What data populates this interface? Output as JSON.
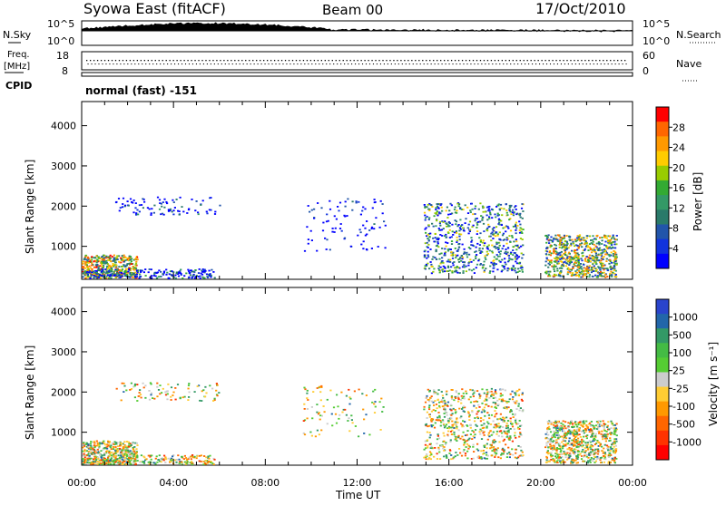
{
  "header": {
    "station": "Syowa East (fitACF)",
    "beam": "Beam 00",
    "date": "17/Oct/2010"
  },
  "noise_panel": {
    "left_label": "N.Sky",
    "right_label": "N.Search",
    "left_ticks": [
      "10^5",
      "10^0"
    ],
    "right_ticks": [
      "10^5",
      "10^0"
    ]
  },
  "freq_panel": {
    "left_label_1": "Freq.",
    "left_label_2": "[MHz]",
    "right_label": "Nave",
    "left_ticks": [
      "18",
      "8"
    ],
    "right_ticks": [
      "60",
      "0"
    ]
  },
  "cpid_panel": {
    "label": "CPID",
    "value": "normal (fast) -151"
  },
  "chart_data": [
    {
      "type": "heatmap",
      "name": "power",
      "ylabel": "Slant Range [km]",
      "ylim": [
        180,
        4600
      ],
      "yticks": [
        1000,
        2000,
        3000,
        4000
      ],
      "colorbar": {
        "label": "Power [dB]",
        "ticks": [
          "28",
          "24",
          "20",
          "16",
          "12",
          "8",
          "4"
        ],
        "colors": [
          "#ff0000",
          "#ff6600",
          "#ff9900",
          "#ffcc00",
          "#99cc00",
          "#33aa33",
          "#339966",
          "#2a7a6a",
          "#2255aa",
          "#1133dd",
          "#0000ff"
        ]
      }
    },
    {
      "type": "heatmap",
      "name": "velocity",
      "ylabel": "Slant Range [km]",
      "ylim": [
        180,
        4600
      ],
      "yticks": [
        1000,
        2000,
        3000,
        4000
      ],
      "colorbar": {
        "label": "Velocity [m s⁻¹]",
        "ticks": [
          "1000",
          "500",
          "100",
          "25",
          "-25",
          "-100",
          "-500",
          "-1000"
        ],
        "colors": [
          "#2a44cc",
          "#2266aa",
          "#339966",
          "#44bb44",
          "#55cc33",
          "#cccccc",
          "#ffcc33",
          "#ff9900",
          "#ff6600",
          "#ff3300",
          "#ff0000"
        ]
      }
    }
  ],
  "xaxis": {
    "label": "Time UT",
    "ticks": [
      "00:00",
      "04:00",
      "08:00",
      "12:00",
      "16:00",
      "20:00",
      "00:00"
    ]
  }
}
